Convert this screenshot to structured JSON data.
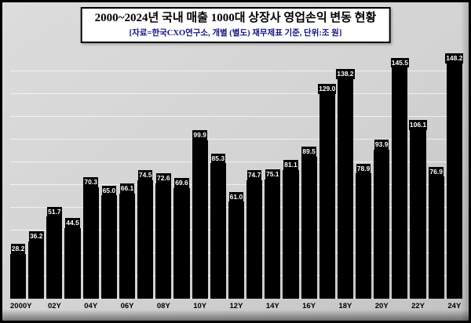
{
  "chart_data": {
    "type": "bar",
    "title": "2000~2024년 국내 매출 1000대 상장사 영업손익 변동 현황",
    "subtitle": "[자료=한국CXO연구소, 개별 (별도) 재무제표 기준, 단위:조 원]",
    "categories": [
      "2000",
      "2001",
      "2002",
      "2003",
      "2004",
      "2005",
      "2006",
      "2007",
      "2008",
      "2009",
      "2010",
      "2011",
      "2012",
      "2013",
      "2014",
      "2015",
      "2016",
      "2017",
      "2018",
      "2019",
      "2020",
      "2021",
      "2022",
      "2023",
      "2024"
    ],
    "values": [
      28.2,
      36.2,
      51.7,
      44.5,
      70.3,
      65.0,
      66.1,
      74.5,
      72.6,
      69.6,
      99.9,
      85.3,
      61.0,
      74.7,
      75.1,
      81.1,
      89.5,
      129.0,
      138.2,
      78.9,
      93.9,
      145.5,
      106.1,
      76.9,
      148.2
    ],
    "x_tick_labels": [
      "2000Y",
      "",
      "02Y",
      "",
      "04Y",
      "",
      "06Y",
      "",
      "08Y",
      "",
      "10Y",
      "",
      "12Y",
      "",
      "14Y",
      "",
      "16Y",
      "",
      "18Y",
      "",
      "20Y",
      "",
      "22Y",
      "",
      "24Y"
    ],
    "ylim": [
      0,
      155
    ],
    "ylabel": "",
    "xlabel": "",
    "grid": true,
    "legend_position": "none",
    "bar_color": "#000000",
    "value_label_bg": "#000000",
    "value_label_text": "#ffffff",
    "plot_bg": "#d3d3d3",
    "subtitle_color": "#12127e"
  }
}
